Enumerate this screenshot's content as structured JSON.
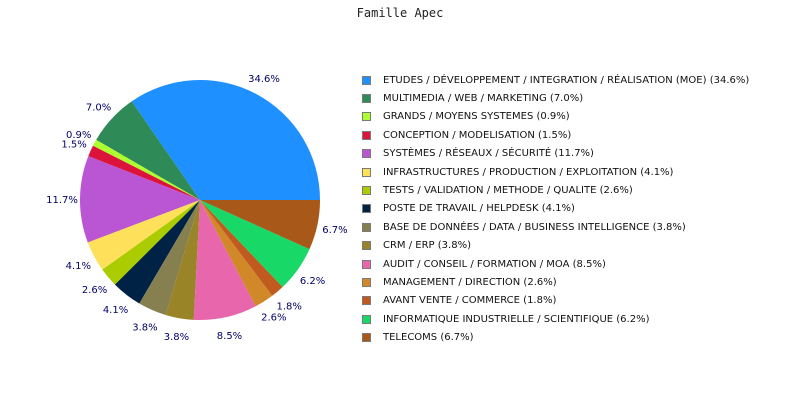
{
  "chart_data": {
    "type": "pie",
    "title": "Famille Apec",
    "start_angle_deg": 0,
    "direction": "counterclockwise",
    "legend_position": "right",
    "slices": [
      {
        "label": "ETUDES / DÉVELOPPEMENT / INTEGRATION / RÉALISATION (MOE)",
        "value": 34.6,
        "value_label": "34.6%",
        "color": "#1e90ff"
      },
      {
        "label": "MULTIMEDIA / WEB / MARKETING",
        "value": 7.0,
        "value_label": "7.0%",
        "color": "#2e8b57"
      },
      {
        "label": "GRANDS / MOYENS SYSTEMES",
        "value": 0.9,
        "value_label": "0.9%",
        "color": "#adff2f"
      },
      {
        "label": "CONCEPTION / MODELISATION",
        "value": 1.5,
        "value_label": "1.5%",
        "color": "#dc143c"
      },
      {
        "label": "SYSTÈMES / RÉSEAUX / SÉCURITÉ",
        "value": 11.7,
        "value_label": "11.7%",
        "color": "#ba55d3"
      },
      {
        "label": "INFRASTRUCTURES / PRODUCTION / EXPLOITATION",
        "value": 4.1,
        "value_label": "4.1%",
        "color": "#ffe05a"
      },
      {
        "label": "TESTS / VALIDATION / METHODE / QUALITE",
        "value": 2.6,
        "value_label": "2.6%",
        "color": "#aacc00"
      },
      {
        "label": "POSTE DE TRAVAIL / HELPDESK",
        "value": 4.1,
        "value_label": "4.1%",
        "color": "#002244"
      },
      {
        "label": "BASE DE DONNÉES / DATA / BUSINESS INTELLIGENCE",
        "value": 3.8,
        "value_label": "3.8%",
        "color": "#868050"
      },
      {
        "label": "CRM / ERP",
        "value": 3.8,
        "value_label": "3.8%",
        "color": "#9a8428"
      },
      {
        "label": "AUDIT / CONSEIL / FORMATION / MOA",
        "value": 8.5,
        "value_label": "8.5%",
        "color": "#e866ac"
      },
      {
        "label": "MANAGEMENT / DIRECTION",
        "value": 2.6,
        "value_label": "2.6%",
        "color": "#d08828"
      },
      {
        "label": "AVANT VENTE / COMMERCE",
        "value": 1.8,
        "value_label": "1.8%",
        "color": "#c05a1e"
      },
      {
        "label": "INFORMATIQUE INDUSTRIELLE / SCIENTIFIQUE",
        "value": 6.2,
        "value_label": "6.2%",
        "color": "#18d868"
      },
      {
        "label": "TELECOMS",
        "value": 6.7,
        "value_label": "6.7%",
        "color": "#a85818"
      }
    ],
    "legend_entries": [
      "ETUDES / DÉVELOPPEMENT / INTEGRATION / RÉALISATION (MOE)  (34.6%)",
      "MULTIMEDIA / WEB / MARKETING  (7.0%)",
      "GRANDS / MOYENS SYSTEMES  (0.9%)",
      "CONCEPTION / MODELISATION  (1.5%)",
      "SYSTÈMES / RÉSEAUX / SÉCURITÉ  (11.7%)",
      "INFRASTRUCTURES / PRODUCTION / EXPLOITATION  (4.1%)",
      "TESTS / VALIDATION / METHODE / QUALITE  (2.6%)",
      "POSTE DE TRAVAIL / HELPDESK  (4.1%)",
      "BASE DE DONNÉES / DATA / BUSINESS INTELLIGENCE  (3.8%)",
      "CRM / ERP  (3.8%)",
      "AUDIT / CONSEIL / FORMATION / MOA  (8.5%)",
      "MANAGEMENT / DIRECTION  (2.6%)",
      "AVANT VENTE / COMMERCE  (1.8%)",
      "INFORMATIQUE INDUSTRIELLE / SCIENTIFIQUE  (6.2%)",
      "TELECOMS  (6.7%)"
    ]
  }
}
